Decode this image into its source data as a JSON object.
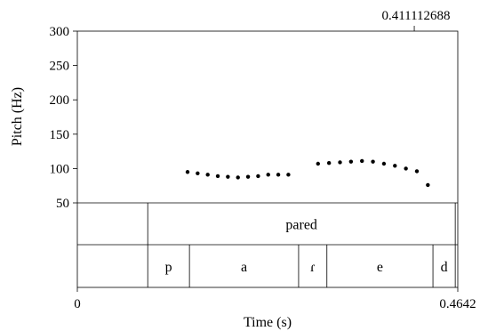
{
  "chart_data": {
    "type": "scatter",
    "ylabel": "Pitch (Hz)",
    "xlabel": "Time (s)",
    "xlim": [
      0,
      0.4642
    ],
    "ylim": [
      50,
      300
    ],
    "y_ticks": [
      50,
      100,
      150,
      200,
      250,
      300
    ],
    "x_tick_labels": [
      "0",
      "0.4642"
    ],
    "cursor_time": 0.411112688,
    "cursor_label": "0.411112688",
    "pitch_points": [
      {
        "t": 0.1345,
        "hz": 95
      },
      {
        "t": 0.1468,
        "hz": 93
      },
      {
        "t": 0.1591,
        "hz": 91
      },
      {
        "t": 0.1714,
        "hz": 89
      },
      {
        "t": 0.1837,
        "hz": 88
      },
      {
        "t": 0.196,
        "hz": 87
      },
      {
        "t": 0.2083,
        "hz": 88
      },
      {
        "t": 0.2206,
        "hz": 89
      },
      {
        "t": 0.2329,
        "hz": 91
      },
      {
        "t": 0.2452,
        "hz": 91
      },
      {
        "t": 0.2575,
        "hz": 91
      },
      {
        "t": 0.2937,
        "hz": 107
      },
      {
        "t": 0.3071,
        "hz": 108
      },
      {
        "t": 0.3205,
        "hz": 109
      },
      {
        "t": 0.3339,
        "hz": 110
      },
      {
        "t": 0.3473,
        "hz": 111
      },
      {
        "t": 0.3607,
        "hz": 110
      },
      {
        "t": 0.3741,
        "hz": 107
      },
      {
        "t": 0.3875,
        "hz": 104
      },
      {
        "t": 0.4009,
        "hz": 100
      },
      {
        "t": 0.4143,
        "hz": 96
      },
      {
        "t": 0.4277,
        "hz": 76
      }
    ],
    "word_tier": {
      "boundaries": [
        0.0859,
        0.4611
      ],
      "intervals": [
        {
          "label": "",
          "start": 0,
          "end": 0.0859
        },
        {
          "label": "pared",
          "start": 0.0859,
          "end": 0.4611
        },
        {
          "label": "",
          "start": 0.4611,
          "end": 0.4642
        }
      ]
    },
    "phone_tier": {
      "boundaries": [
        0.0859,
        0.1368,
        0.27,
        0.3045,
        0.4339,
        0.4611
      ],
      "intervals": [
        {
          "label": "",
          "start": 0,
          "end": 0.0859
        },
        {
          "label": "p",
          "start": 0.0859,
          "end": 0.1368
        },
        {
          "label": "a",
          "start": 0.1368,
          "end": 0.27
        },
        {
          "label": "ɾ",
          "start": 0.27,
          "end": 0.3045
        },
        {
          "label": "e",
          "start": 0.3045,
          "end": 0.4339
        },
        {
          "label": "d",
          "start": 0.4339,
          "end": 0.4611
        },
        {
          "label": "",
          "start": 0.4611,
          "end": 0.4642
        }
      ]
    }
  }
}
